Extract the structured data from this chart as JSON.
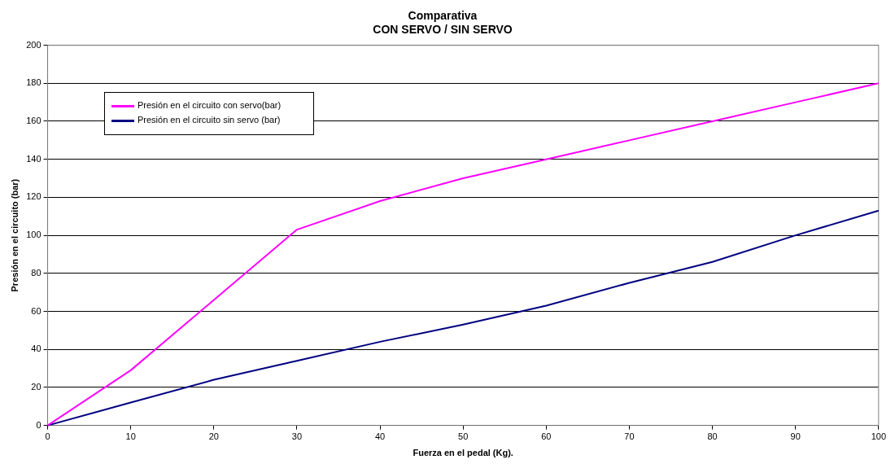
{
  "chart_data": {
    "type": "line",
    "title": "Comparativa",
    "subtitle": "CON SERVO / SIN SERVO",
    "xlabel": "Fuerza en el pedal (Kg).",
    "ylabel": "Presión en el circuito (bar)",
    "x": [
      0,
      10,
      20,
      30,
      40,
      50,
      60,
      70,
      80,
      90,
      100
    ],
    "series": [
      {
        "name": "Presión en el circuito con servo(bar)",
        "color": "#ff00ff",
        "values": [
          0,
          29,
          66,
          103,
          118,
          130,
          140,
          150,
          160,
          170,
          180
        ]
      },
      {
        "name": "Presión en el circuito sin servo (bar)",
        "color": "#000080",
        "values": [
          0,
          12,
          24,
          34,
          44,
          53,
          63,
          75,
          86,
          100,
          113
        ]
      }
    ],
    "xlim": [
      0,
      100
    ],
    "xticks": [
      0,
      10,
      20,
      30,
      40,
      50,
      60,
      70,
      80,
      90,
      100
    ],
    "ylim": [
      0,
      200
    ],
    "yticks": [
      0,
      20,
      40,
      60,
      80,
      100,
      120,
      140,
      160,
      180,
      200
    ],
    "grid": "y",
    "legend": "top left",
    "marker": "none",
    "line_style": "solid"
  }
}
